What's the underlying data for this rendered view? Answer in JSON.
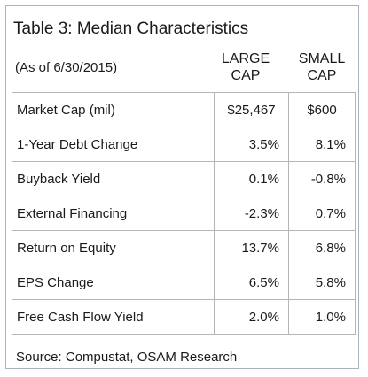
{
  "table": {
    "title": "Table 3: Median Characteristics",
    "as_of": "(As of 6/30/2015)",
    "columns": {
      "large": [
        "LARGE",
        "CAP"
      ],
      "small": [
        "SMALL",
        "CAP"
      ]
    },
    "rows": [
      {
        "label": "Market Cap (mil)",
        "large": "$25,467",
        "small": "$600"
      },
      {
        "label": "1-Year Debt Change",
        "large": "3.5%",
        "small": "8.1%"
      },
      {
        "label": "Buyback Yield",
        "large": "0.1%",
        "small": "-0.8%"
      },
      {
        "label": "External Financing",
        "large": "-2.3%",
        "small": "0.7%"
      },
      {
        "label": "Return on Equity",
        "large": "13.7%",
        "small": "6.8%"
      },
      {
        "label": "EPS Change",
        "large": "6.5%",
        "small": "5.8%"
      },
      {
        "label": "Free Cash Flow Yield",
        "large": "2.0%",
        "small": "1.0%"
      }
    ],
    "source": "Source: Compustat, OSAM Research"
  },
  "colors": {
    "border": "#a9b4c2",
    "grid": "#b5b5b5",
    "text": "#1a1a1a"
  }
}
